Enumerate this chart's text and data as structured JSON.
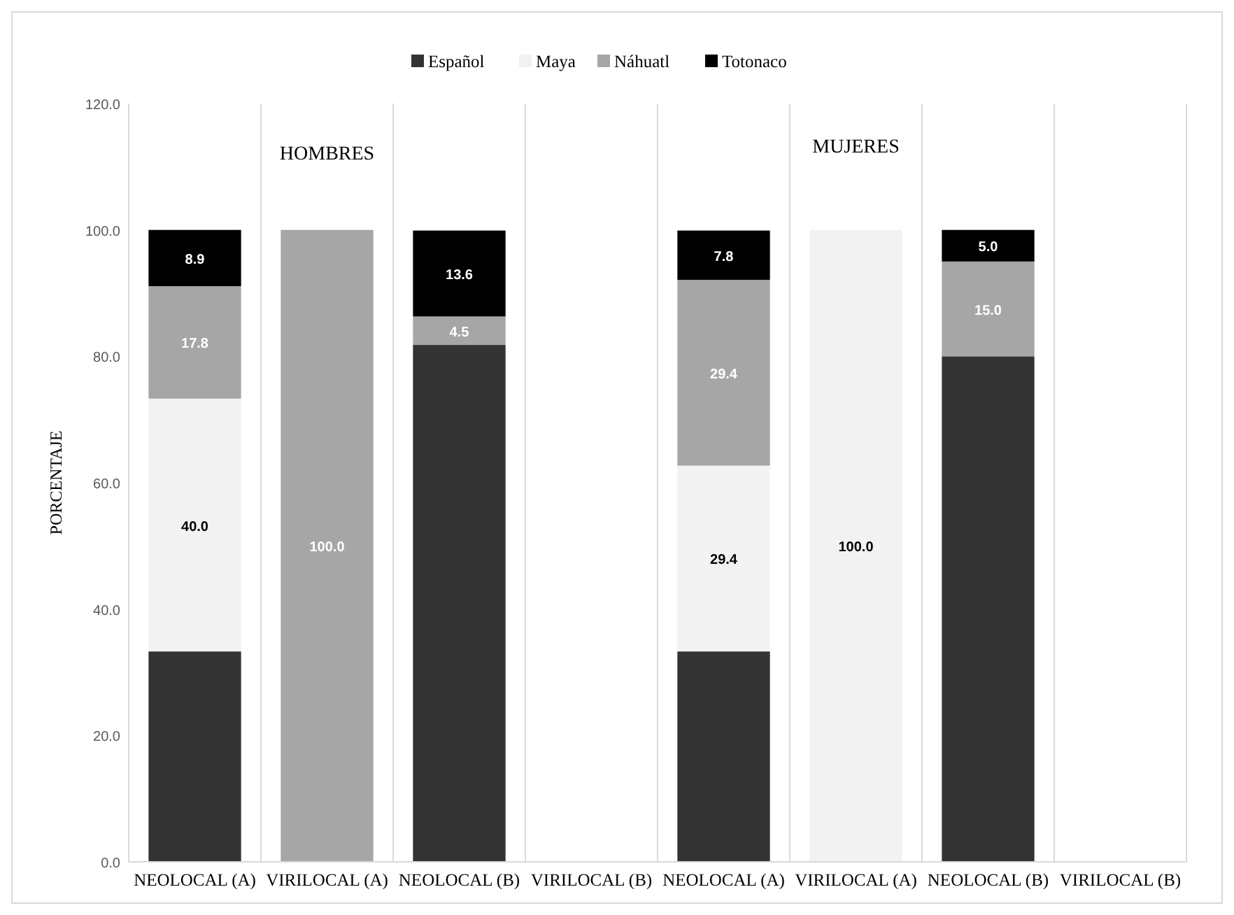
{
  "chart_data": {
    "type": "bar",
    "stacked": true,
    "ylabel": "PORCENTAJE",
    "categories": [
      "NEOLOCAL (A)",
      "VIRILOCAL (A)",
      "NEOLOCAL (B)",
      "VIRILOCAL (B)",
      "NEOLOCAL (A)",
      "VIRILOCAL (A)",
      "NEOLOCAL (B)",
      "VIRILOCAL (B)"
    ],
    "series": [
      {
        "name": "Español",
        "color": "#333333",
        "values": [
          33.3,
          0,
          81.8,
          0,
          33.3,
          0,
          80.0,
          0
        ],
        "value_labels": [
          null,
          null,
          null,
          null,
          null,
          null,
          null,
          null
        ]
      },
      {
        "name": "Maya",
        "color": "#f2f2f2",
        "values": [
          40.0,
          0,
          0,
          0,
          29.4,
          100.0,
          0,
          0
        ],
        "value_labels": [
          "40.0",
          null,
          null,
          null,
          "29.4",
          "100.0",
          null,
          null
        ]
      },
      {
        "name": "Náhuatl",
        "color": "#a6a6a6",
        "values": [
          17.8,
          100.0,
          4.5,
          0,
          29.4,
          0,
          15.0,
          0
        ],
        "value_labels": [
          "17.8",
          "100.0",
          "4.5",
          null,
          "29.4",
          null,
          "15.0",
          null
        ]
      },
      {
        "name": "Totonaco",
        "color": "#000000",
        "values": [
          8.9,
          0,
          13.6,
          0,
          7.8,
          0,
          5.0,
          0
        ],
        "value_labels": [
          "8.9",
          null,
          "13.6",
          null,
          "7.8",
          null,
          "5.0",
          null
        ]
      }
    ],
    "ylim": [
      0,
      120
    ],
    "yticks": [
      {
        "value": 0,
        "label": "0.0"
      },
      {
        "value": 20,
        "label": "20.0"
      },
      {
        "value": 40,
        "label": "40.0"
      },
      {
        "value": 60,
        "label": "60.0"
      },
      {
        "value": 80,
        "label": "80.0"
      },
      {
        "value": 100,
        "label": "100.0"
      },
      {
        "value": 120,
        "label": "120.0"
      }
    ],
    "grid": "x",
    "legend": "top",
    "annotations": [
      "HOMBRES",
      "MUJERES"
    ]
  }
}
